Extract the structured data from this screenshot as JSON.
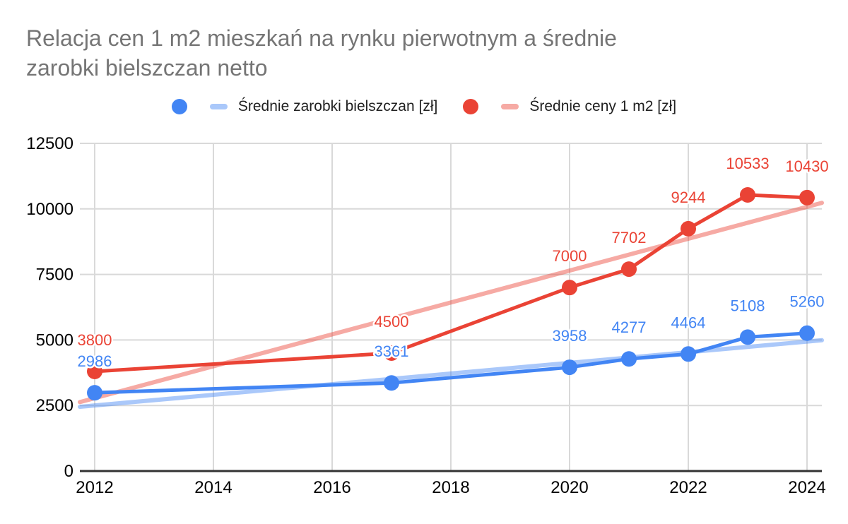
{
  "title": {
    "line1": "Relacja cen 1 m2 mieszkań na rynku pierwotnym a średnie",
    "line2": "zarobki bielszczan netto",
    "color": "#757575"
  },
  "legend": [
    {
      "label": "Średnie zarobki bielszczan [zł]",
      "point_color": "#4285F4",
      "trend_color": "rgba(66,133,244,0.45)"
    },
    {
      "label": "Średnie ceny 1 m2 [zł]",
      "point_color": "#EA4335",
      "trend_color": "rgba(234,67,53,0.45)"
    }
  ],
  "chart_data": {
    "type": "line",
    "title": "Relacja cen 1 m2 mieszkań na rynku pierwotnym a średnie zarobki bielszczan netto",
    "xlabel": "",
    "ylabel": "",
    "x": [
      2012,
      2017,
      2020,
      2021,
      2022,
      2023,
      2024
    ],
    "series": [
      {
        "name": "Średnie zarobki bielszczan [zł]",
        "color": "#4285F4",
        "values": [
          2986,
          3361,
          3958,
          4277,
          4464,
          5108,
          5260
        ]
      },
      {
        "name": "Średnie ceny 1 m2 [zł]",
        "color": "#EA4335",
        "values": [
          3800,
          4500,
          7000,
          7702,
          9244,
          10533,
          10430
        ]
      }
    ],
    "trendlines": [
      {
        "series": "Średnie zarobki bielszczan [zł]",
        "color": "rgba(66,133,244,0.45)",
        "x_start": 2011.75,
        "value_start": 2450,
        "x_end": 2024.25,
        "value_end": 4990
      },
      {
        "series": "Średnie ceny 1 m2 [zł]",
        "color": "rgba(234,67,53,0.45)",
        "x_start": 2011.75,
        "value_start": 2630,
        "x_end": 2024.25,
        "value_end": 10230
      }
    ],
    "x_ticks": [
      2012,
      2014,
      2016,
      2018,
      2020,
      2022,
      2024
    ],
    "y_ticks": [
      0,
      2500,
      5000,
      7500,
      10000,
      12500
    ],
    "x_domain": [
      2011.75,
      2024.25
    ],
    "ylim": [
      0,
      12500
    ],
    "grid": true,
    "legend_position": "top",
    "data_labels": true,
    "gridline_color": "#d9d9d9",
    "axis_line_color": "#333333",
    "tick_label_color": "#000000"
  }
}
